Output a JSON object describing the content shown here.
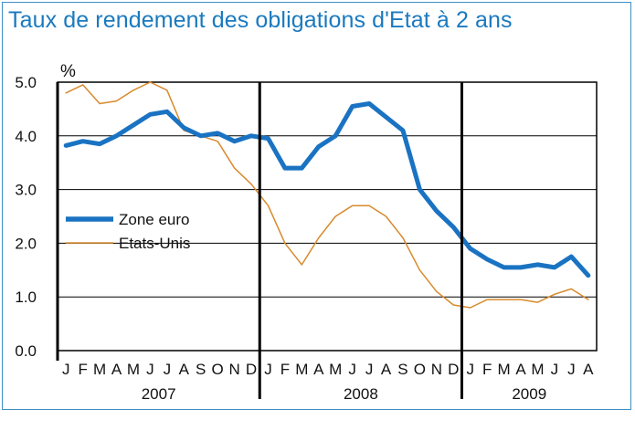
{
  "chart_data": {
    "type": "line",
    "title": "Taux de rendement des obligations d'Etat à 2 ans",
    "ylabel": "%",
    "ylim": [
      0,
      5
    ],
    "yticks": [
      "0.0",
      "1.0",
      "2.0",
      "3.0",
      "4.0",
      "5.0"
    ],
    "month_labels": [
      "J",
      "F",
      "M",
      "A",
      "M",
      "J",
      "J",
      "A",
      "S",
      "O",
      "N",
      "D",
      "J",
      "F",
      "M",
      "A",
      "M",
      "J",
      "J",
      "A",
      "S",
      "O",
      "N",
      "D",
      "J",
      "F",
      "M",
      "A",
      "M",
      "J",
      "J",
      "A"
    ],
    "years": [
      "2007",
      "2008",
      "2009"
    ],
    "legend_position": "left-middle",
    "grid": true,
    "colors": {
      "zone_euro": "#1a73c2",
      "etats_unis": "#d88a2c",
      "title": "#1a7abf",
      "frame": "#3f8fc4"
    },
    "series": [
      {
        "name": "Zone euro",
        "x": [
          "2007-01",
          "2007-02",
          "2007-03",
          "2007-04",
          "2007-05",
          "2007-06",
          "2007-07",
          "2007-08",
          "2007-09",
          "2007-10",
          "2007-11",
          "2007-12",
          "2008-01",
          "2008-02",
          "2008-03",
          "2008-04",
          "2008-05",
          "2008-06",
          "2008-07",
          "2008-08",
          "2008-09",
          "2008-10",
          "2008-11",
          "2008-12",
          "2009-01",
          "2009-02",
          "2009-03",
          "2009-04",
          "2009-05",
          "2009-06",
          "2009-07",
          "2009-08"
        ],
        "values": [
          3.82,
          3.9,
          3.85,
          4.0,
          4.2,
          4.4,
          4.45,
          4.15,
          4.0,
          4.05,
          3.9,
          4.0,
          3.95,
          3.4,
          3.4,
          3.8,
          4.0,
          4.55,
          4.6,
          4.35,
          4.1,
          3.0,
          2.6,
          2.3,
          1.9,
          1.7,
          1.55,
          1.55,
          1.6,
          1.55,
          1.75,
          1.4
        ]
      },
      {
        "name": "Etats-Unis",
        "x": [
          "2007-01",
          "2007-02",
          "2007-03",
          "2007-04",
          "2007-05",
          "2007-06",
          "2007-07",
          "2007-08",
          "2007-09",
          "2007-10",
          "2007-11",
          "2007-12",
          "2008-01",
          "2008-02",
          "2008-03",
          "2008-04",
          "2008-05",
          "2008-06",
          "2008-07",
          "2008-08",
          "2008-09",
          "2008-10",
          "2008-11",
          "2008-12",
          "2009-01",
          "2009-02",
          "2009-03",
          "2009-04",
          "2009-05",
          "2009-06",
          "2009-07",
          "2009-08"
        ],
        "values": [
          4.8,
          4.95,
          4.6,
          4.65,
          4.85,
          5.0,
          4.85,
          4.1,
          4.0,
          3.9,
          3.4,
          3.1,
          2.7,
          2.0,
          1.6,
          2.1,
          2.5,
          2.7,
          2.7,
          2.5,
          2.1,
          1.5,
          1.1,
          0.85,
          0.8,
          0.95,
          0.95,
          0.95,
          0.9,
          1.05,
          1.15,
          0.95
        ]
      }
    ]
  }
}
